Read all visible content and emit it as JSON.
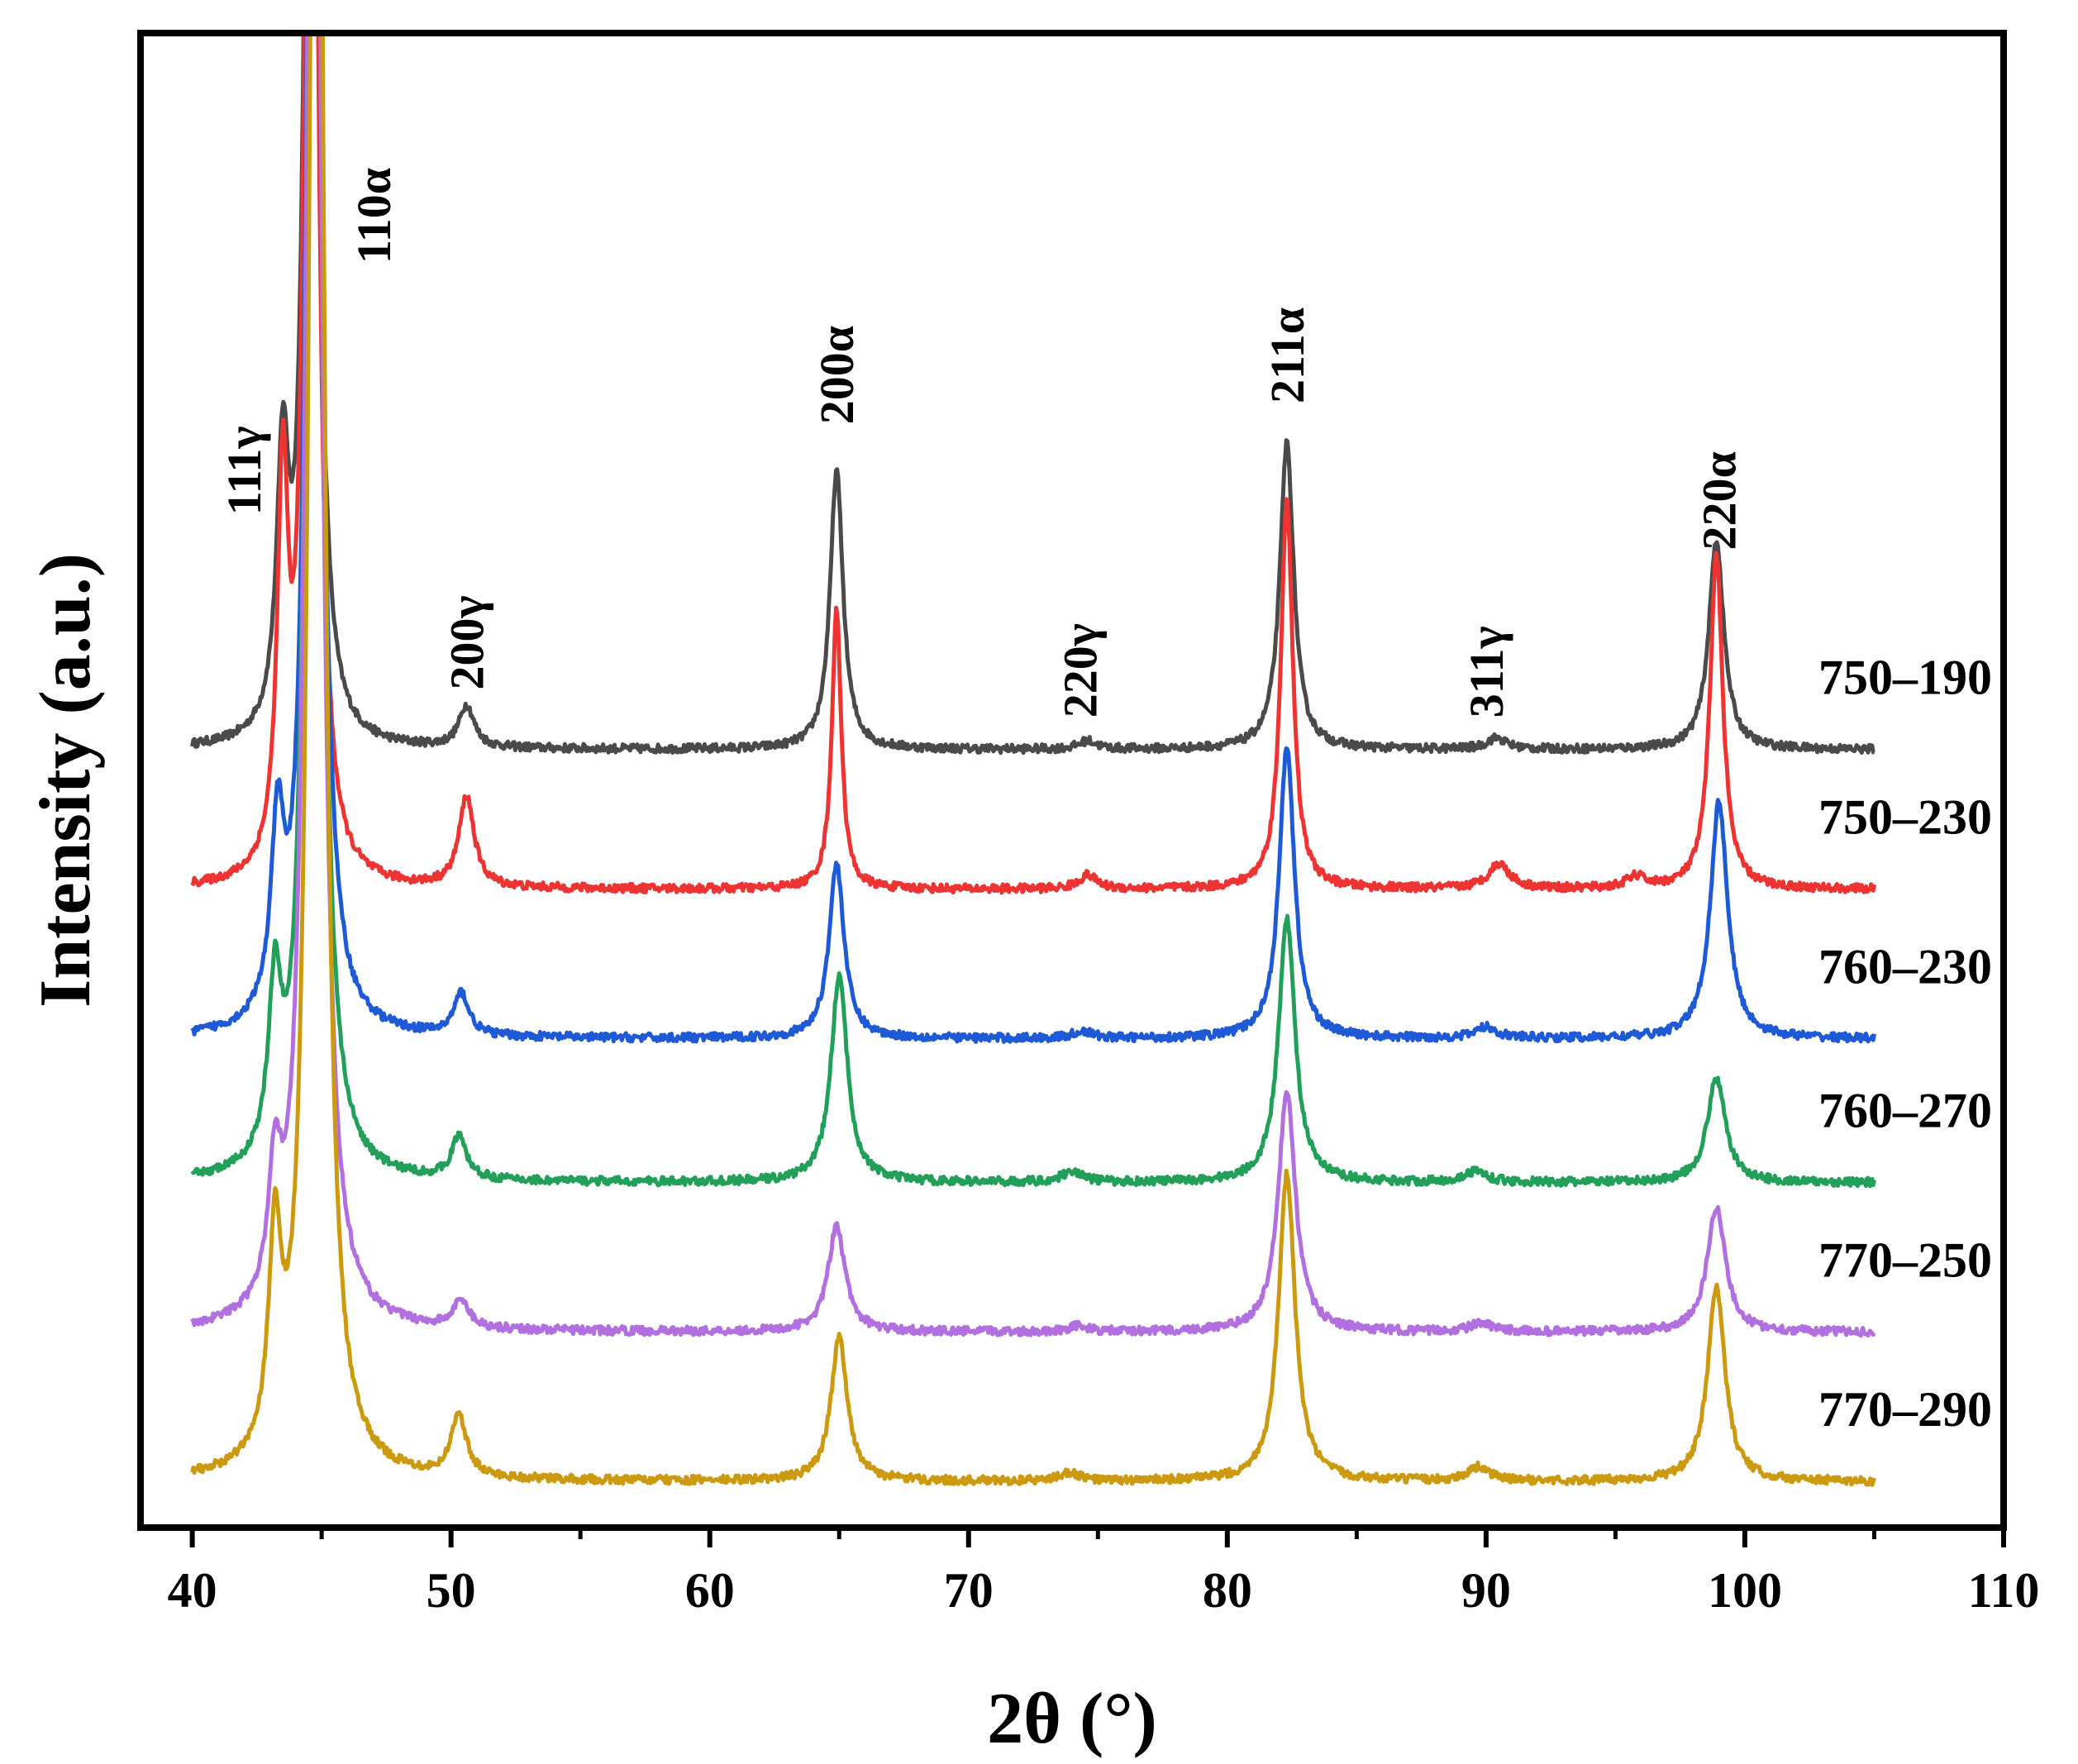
{
  "chart_data": {
    "type": "line",
    "title": "",
    "xlabel": "2θ (°)",
    "ylabel": "Intensity (a.u.)",
    "xlim": [
      38,
      110
    ],
    "ylim": [
      0,
      1
    ],
    "xticks": [
      40,
      50,
      60,
      70,
      80,
      90,
      100,
      110
    ],
    "xtick_labels": [
      "40",
      "50",
      "60",
      "70",
      "80",
      "90",
      "100",
      "110"
    ],
    "x_range": [
      40,
      105
    ],
    "series": [
      {
        "name": "750–190",
        "color": "#4a4a4a",
        "baseline": 0.552,
        "peaks": [
          {
            "x": 43.5,
            "h": 0.19,
            "w": 0.28
          },
          {
            "x": 44.6,
            "h": 1.2,
            "w": 0.25
          },
          {
            "x": 50.6,
            "h": 0.03,
            "w": 0.35
          },
          {
            "x": 64.9,
            "h": 0.2,
            "w": 0.3
          },
          {
            "x": 74.6,
            "h": 0.006,
            "w": 0.4
          },
          {
            "x": 82.3,
            "h": 0.22,
            "w": 0.32
          },
          {
            "x": 90.4,
            "h": 0.008,
            "w": 0.45
          },
          {
            "x": 98.9,
            "h": 0.15,
            "w": 0.35
          }
        ]
      },
      {
        "name": "750–230",
        "color": "#ee3333",
        "baseline": 0.452,
        "peaks": [
          {
            "x": 43.5,
            "h": 0.27,
            "w": 0.25
          },
          {
            "x": 44.6,
            "h": 1.3,
            "w": 0.25
          },
          {
            "x": 50.6,
            "h": 0.065,
            "w": 0.35
          },
          {
            "x": 64.9,
            "h": 0.2,
            "w": 0.22
          },
          {
            "x": 74.6,
            "h": 0.01,
            "w": 0.4
          },
          {
            "x": 82.3,
            "h": 0.28,
            "w": 0.28
          },
          {
            "x": 90.5,
            "h": 0.018,
            "w": 0.5
          },
          {
            "x": 95.8,
            "h": 0.008,
            "w": 0.45
          },
          {
            "x": 98.9,
            "h": 0.24,
            "w": 0.3
          }
        ]
      },
      {
        "name": "760–230",
        "color": "#1f5ad6",
        "baseline": 0.345,
        "peaks": [
          {
            "x": 43.3,
            "h": 0.13,
            "w": 0.3
          },
          {
            "x": 44.7,
            "h": 1.4,
            "w": 0.28
          },
          {
            "x": 50.4,
            "h": 0.03,
            "w": 0.35
          },
          {
            "x": 64.9,
            "h": 0.125,
            "w": 0.35
          },
          {
            "x": 74.4,
            "h": 0.005,
            "w": 0.45
          },
          {
            "x": 82.3,
            "h": 0.21,
            "w": 0.35
          },
          {
            "x": 90.0,
            "h": 0.008,
            "w": 0.5
          },
          {
            "x": 99.0,
            "h": 0.17,
            "w": 0.4
          }
        ]
      },
      {
        "name": "760–270",
        "color": "#22a05a",
        "baseline": 0.242,
        "peaks": [
          {
            "x": 43.2,
            "h": 0.12,
            "w": 0.3
          },
          {
            "x": 44.7,
            "h": 1.5,
            "w": 0.28
          },
          {
            "x": 50.3,
            "h": 0.03,
            "w": 0.35
          },
          {
            "x": 65.0,
            "h": 0.148,
            "w": 0.38
          },
          {
            "x": 74.0,
            "h": 0.008,
            "w": 0.45
          },
          {
            "x": 82.3,
            "h": 0.19,
            "w": 0.38
          },
          {
            "x": 89.6,
            "h": 0.008,
            "w": 0.5
          },
          {
            "x": 98.9,
            "h": 0.075,
            "w": 0.42
          }
        ]
      },
      {
        "name": "770–250",
        "color": "#b26fe0",
        "baseline": 0.135,
        "peaks": [
          {
            "x": 43.2,
            "h": 0.09,
            "w": 0.3
          },
          {
            "x": 44.7,
            "h": 1.6,
            "w": 0.3
          },
          {
            "x": 50.4,
            "h": 0.02,
            "w": 0.35
          },
          {
            "x": 64.9,
            "h": 0.075,
            "w": 0.4
          },
          {
            "x": 74.2,
            "h": 0.004,
            "w": 0.45
          },
          {
            "x": 82.3,
            "h": 0.172,
            "w": 0.4
          },
          {
            "x": 89.8,
            "h": 0.006,
            "w": 0.5
          },
          {
            "x": 98.9,
            "h": 0.09,
            "w": 0.42
          }
        ]
      },
      {
        "name": "770–290",
        "color": "#cc9a10",
        "baseline": 0.028,
        "peaks": [
          {
            "x": 43.2,
            "h": 0.15,
            "w": 0.3
          },
          {
            "x": 44.8,
            "h": 1.7,
            "w": 0.3
          },
          {
            "x": 50.3,
            "h": 0.045,
            "w": 0.35
          },
          {
            "x": 65.0,
            "h": 0.103,
            "w": 0.38
          },
          {
            "x": 73.9,
            "h": 0.006,
            "w": 0.45
          },
          {
            "x": 82.3,
            "h": 0.22,
            "w": 0.38
          },
          {
            "x": 89.7,
            "h": 0.01,
            "w": 0.5
          },
          {
            "x": 98.9,
            "h": 0.14,
            "w": 0.4
          }
        ]
      }
    ],
    "annotations": [
      {
        "text": "111γ",
        "x": 42.0,
        "y": 0.72
      },
      {
        "text": "110α",
        "x": 47.0,
        "y": 0.9
      },
      {
        "text": "200γ",
        "x": 50.6,
        "y": 0.595
      },
      {
        "text": "200α",
        "x": 64.9,
        "y": 0.785
      },
      {
        "text": "220γ",
        "x": 74.3,
        "y": 0.575
      },
      {
        "text": "211α",
        "x": 82.3,
        "y": 0.8
      },
      {
        "text": "311γ",
        "x": 90.0,
        "y": 0.575
      },
      {
        "text": "220α",
        "x": 99.0,
        "y": 0.695
      }
    ]
  }
}
